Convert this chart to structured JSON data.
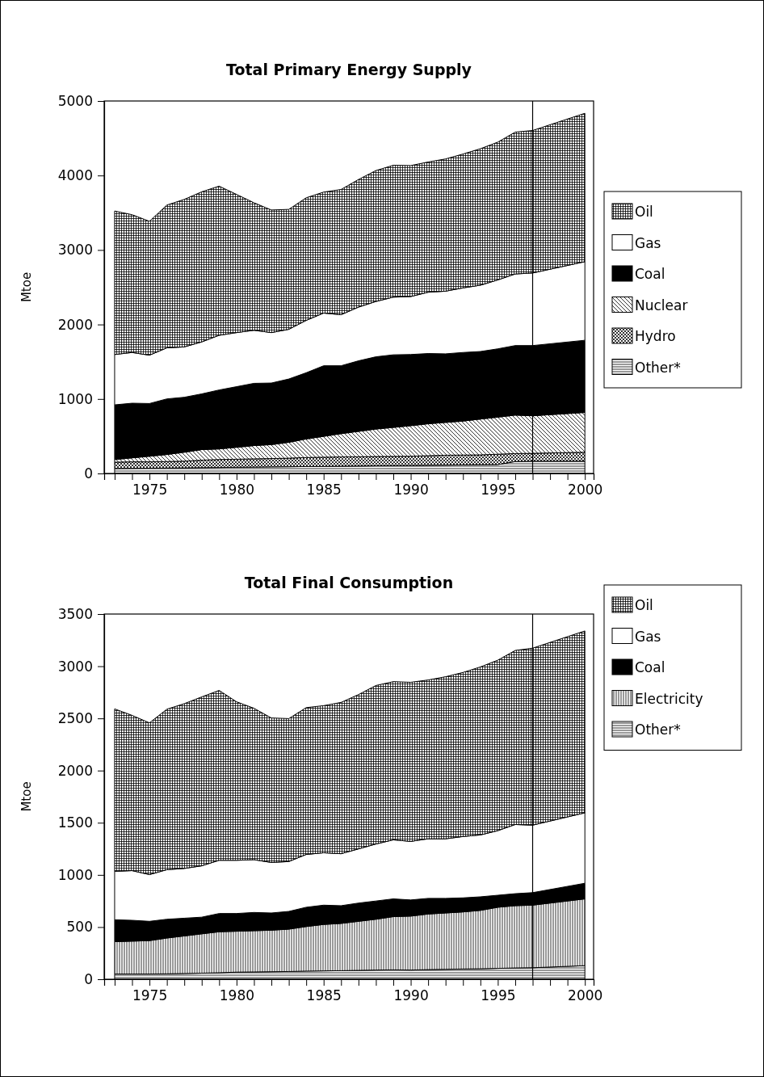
{
  "chart_data": [
    {
      "type": "area",
      "title": "Total Primary Energy Supply",
      "ylabel": "Mtoe",
      "stacked": true,
      "legend": "right",
      "x": [
        1973,
        1974,
        1975,
        1976,
        1977,
        1978,
        1979,
        1980,
        1981,
        1982,
        1983,
        1984,
        1985,
        1986,
        1987,
        1988,
        1989,
        1990,
        1991,
        1992,
        1993,
        1994,
        1995,
        1996,
        1997,
        2000
      ],
      "xlim": [
        1972.4,
        2000.5
      ],
      "ylim": [
        0,
        5000
      ],
      "yticks": [
        0,
        1000,
        2000,
        3000,
        4000,
        5000
      ],
      "xticks": [
        {
          "value": 1973,
          "label": null
        },
        {
          "value": 1974,
          "label": null
        },
        1975,
        {
          "value": 1976,
          "label": null
        },
        {
          "value": 1977,
          "label": null
        },
        {
          "value": 1978,
          "label": null
        },
        {
          "value": 1979,
          "label": null
        },
        1980,
        {
          "value": 1981,
          "label": null
        },
        {
          "value": 1982,
          "label": null
        },
        {
          "value": 1983,
          "label": null
        },
        {
          "value": 1984,
          "label": null
        },
        1985,
        {
          "value": 1986,
          "label": null
        },
        {
          "value": 1987,
          "label": null
        },
        {
          "value": 1988,
          "label": null
        },
        {
          "value": 1989,
          "label": null
        },
        1990,
        {
          "value": 1991,
          "label": null
        },
        {
          "value": 1992,
          "label": null
        },
        {
          "value": 1993,
          "label": null
        },
        {
          "value": 1994,
          "label": null
        },
        1995,
        {
          "value": 1996,
          "label": null
        },
        {
          "value": 1997,
          "label": null
        },
        {
          "value": 1998,
          "label": null
        },
        {
          "value": 1999,
          "label": null
        },
        2000
      ],
      "ref_lines": [
        {
          "axis": "x",
          "value": 1997,
          "color": "#000000"
        }
      ],
      "series": [
        {
          "name": "Other*",
          "color": "#000000",
          "values": [
            67,
            69,
            71,
            73,
            75,
            78,
            80,
            83,
            85,
            88,
            90,
            93,
            95,
            98,
            100,
            103,
            105,
            107,
            110,
            112,
            115,
            118,
            120,
            160,
            165,
            165
          ]
        },
        {
          "name": "Hydro",
          "color": "#000000",
          "values": [
            84,
            87,
            85,
            87,
            90,
            100,
            107,
            108,
            111,
            112,
            115,
            121,
            123,
            124,
            124,
            124,
            124,
            124,
            128,
            133,
            132,
            131,
            138,
            107,
            105,
            120
          ]
        },
        {
          "name": "Nuclear",
          "color": "#000000",
          "values": [
            36,
            53,
            75,
            94,
            120,
            142,
            142,
            160,
            178,
            187,
            213,
            249,
            280,
            312,
            341,
            369,
            389,
            410,
            429,
            440,
            456,
            481,
            498,
            516,
            504,
            534
          ]
        },
        {
          "name": "Coal",
          "color": "#000000",
          "values": [
            734,
            734,
            708,
            747,
            738,
            748,
            792,
            814,
            836,
            827,
            850,
            889,
            948,
            912,
            947,
            970,
            975,
            956,
            943,
            921,
            921,
            907,
            917,
            934,
            943,
            969
          ]
        },
        {
          "name": "Gas",
          "color": "#ffffff",
          "values": [
            676,
            681,
            649,
            685,
            676,
            698,
            734,
            726,
            712,
            677,
            667,
            703,
            707,
            685,
            721,
            743,
            774,
            778,
            823,
            841,
            867,
            890,
            925,
            961,
            974,
            1055
          ]
        },
        {
          "name": "Oil",
          "color": "#000000",
          "values": [
            1926,
            1850,
            1797,
            1917,
            1980,
            2015,
            2002,
            1855,
            1712,
            1646,
            1610,
            1646,
            1624,
            1681,
            1713,
            1757,
            1770,
            1758,
            1748,
            1775,
            1797,
            1832,
            1850,
            1904,
            1913,
            1992
          ]
        }
      ]
    },
    {
      "type": "area",
      "title": "Total Final Consumption",
      "ylabel": "Mtoe",
      "stacked": true,
      "legend": "right",
      "x": [
        1973,
        1974,
        1975,
        1976,
        1977,
        1978,
        1979,
        1980,
        1981,
        1982,
        1983,
        1984,
        1985,
        1986,
        1987,
        1988,
        1989,
        1990,
        1991,
        1992,
        1993,
        1994,
        1995,
        1996,
        1997,
        2000
      ],
      "xlim": [
        1972.4,
        2000.5
      ],
      "ylim": [
        0,
        3500
      ],
      "yticks": [
        0,
        500,
        1000,
        1500,
        2000,
        2500,
        3000,
        3500
      ],
      "xticks": [
        {
          "value": 1973,
          "label": null
        },
        {
          "value": 1974,
          "label": null
        },
        1975,
        {
          "value": 1976,
          "label": null
        },
        {
          "value": 1977,
          "label": null
        },
        {
          "value": 1978,
          "label": null
        },
        {
          "value": 1979,
          "label": null
        },
        1980,
        {
          "value": 1981,
          "label": null
        },
        {
          "value": 1982,
          "label": null
        },
        {
          "value": 1983,
          "label": null
        },
        {
          "value": 1984,
          "label": null
        },
        1985,
        {
          "value": 1986,
          "label": null
        },
        {
          "value": 1987,
          "label": null
        },
        {
          "value": 1988,
          "label": null
        },
        {
          "value": 1989,
          "label": null
        },
        1990,
        {
          "value": 1991,
          "label": null
        },
        {
          "value": 1992,
          "label": null
        },
        {
          "value": 1993,
          "label": null
        },
        {
          "value": 1994,
          "label": null
        },
        1995,
        {
          "value": 1996,
          "label": null
        },
        {
          "value": 1997,
          "label": null
        },
        {
          "value": 1998,
          "label": null
        },
        {
          "value": 1999,
          "label": null
        },
        2000
      ],
      "ref_lines": [
        {
          "axis": "x",
          "value": 1997,
          "color": "#000000"
        }
      ],
      "series": [
        {
          "name": "Other*",
          "color": "#000000",
          "values": [
            50,
            50,
            50,
            52,
            55,
            58,
            62,
            68,
            70,
            72,
            74,
            78,
            80,
            82,
            85,
            88,
            90,
            88,
            92,
            95,
            98,
            100,
            104,
            108,
            110,
            130
          ]
        },
        {
          "name": "Electricity",
          "color": "#000000",
          "values": [
            310,
            315,
            320,
            343,
            360,
            377,
            393,
            392,
            395,
            398,
            406,
            427,
            445,
            453,
            470,
            487,
            510,
            517,
            533,
            540,
            547,
            560,
            586,
            597,
            600,
            640
          ]
        },
        {
          "name": "Coal",
          "color": "#000000",
          "values": [
            210,
            200,
            185,
            180,
            170,
            160,
            175,
            170,
            175,
            165,
            170,
            185,
            185,
            170,
            175,
            175,
            170,
            155,
            150,
            140,
            135,
            130,
            115,
            115,
            120,
            150
          ]
        },
        {
          "name": "Gas",
          "color": "#ffffff",
          "values": [
            464,
            476,
            448,
            475,
            477,
            492,
            510,
            510,
            506,
            484,
            478,
            506,
            502,
            498,
            519,
            546,
            566,
            561,
            571,
            571,
            588,
            593,
            619,
            663,
            647,
            675
          ]
        },
        {
          "name": "Oil",
          "color": "#000000",
          "values": [
            1557,
            1488,
            1454,
            1538,
            1579,
            1619,
            1628,
            1519,
            1451,
            1385,
            1370,
            1407,
            1410,
            1450,
            1479,
            1519,
            1516,
            1525,
            1522,
            1553,
            1572,
            1610,
            1634,
            1668,
            1696,
            1743
          ]
        }
      ]
    }
  ]
}
